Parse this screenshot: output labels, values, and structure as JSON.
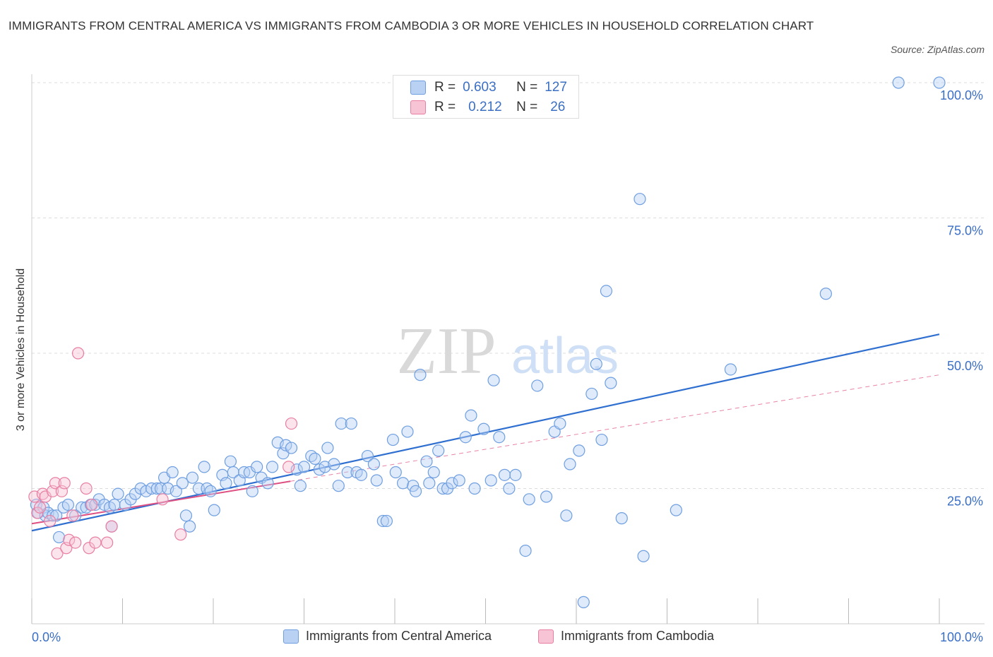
{
  "title": "IMMIGRANTS FROM CENTRAL AMERICA VS IMMIGRANTS FROM CAMBODIA 3 OR MORE VEHICLES IN HOUSEHOLD CORRELATION CHART",
  "source": "Source: ZipAtlas.com",
  "colors": {
    "blue": "#6f9fe0",
    "blue_fill": "#b9d1f3",
    "blue_line": "#2f6fd0",
    "pink": "#e87fa3",
    "pink_fill": "#f6c4d5",
    "pink_line": "#de4f82",
    "axis_text": "#3b6fc4"
  },
  "legend": {
    "r_label": "R =",
    "n_label": "N =",
    "rows": [
      {
        "r": "0.603",
        "n": "127"
      },
      {
        "r": "0.212",
        "n": "26"
      }
    ]
  },
  "watermark": {
    "zip": "ZIP",
    "atlas": "atlas"
  },
  "chart_data": {
    "type": "scatter",
    "xlabel": "",
    "ylabel": "3 or more Vehicles in Household",
    "xlim": [
      0,
      100
    ],
    "ylim": [
      0,
      100
    ],
    "x_tick_labels": [
      "0.0%",
      "100.0%"
    ],
    "y_tick_labels": [
      "25.0%",
      "50.0%",
      "75.0%",
      "100.0%"
    ],
    "y_ticks": [
      25,
      50,
      75,
      100
    ],
    "grid": true,
    "legend_position": "bottom",
    "series": [
      {
        "name": "Immigrants from Central America",
        "color": "#6f9fe0",
        "trend": {
          "x": [
            0,
            100
          ],
          "y": [
            17.2,
            53.5
          ],
          "style": "solid"
        },
        "points": [
          [
            0.5,
            22
          ],
          [
            0.7,
            20.5
          ],
          [
            1.3,
            21.5
          ],
          [
            1.5,
            20
          ],
          [
            1.8,
            20.5
          ],
          [
            2.3,
            20
          ],
          [
            2.7,
            20
          ],
          [
            3,
            16
          ],
          [
            3.5,
            21.5
          ],
          [
            4,
            22
          ],
          [
            4.8,
            20
          ],
          [
            5.5,
            21.5
          ],
          [
            6,
            21.5
          ],
          [
            6.5,
            22
          ],
          [
            7,
            22
          ],
          [
            7.4,
            23
          ],
          [
            8,
            22
          ],
          [
            8.6,
            21.5
          ],
          [
            8.8,
            18
          ],
          [
            9.1,
            22
          ],
          [
            9.5,
            24
          ],
          [
            10.3,
            22
          ],
          [
            10.9,
            23
          ],
          [
            11.4,
            24
          ],
          [
            12,
            25
          ],
          [
            12.6,
            24.5
          ],
          [
            13.2,
            25
          ],
          [
            13.8,
            25
          ],
          [
            14.2,
            25
          ],
          [
            14.6,
            27
          ],
          [
            15,
            25
          ],
          [
            15.5,
            28
          ],
          [
            15.9,
            24.5
          ],
          [
            16.6,
            26
          ],
          [
            17,
            20
          ],
          [
            17.4,
            18
          ],
          [
            17.7,
            27
          ],
          [
            18.4,
            25
          ],
          [
            19,
            29
          ],
          [
            19.3,
            25
          ],
          [
            19.7,
            24.5
          ],
          [
            20.1,
            21
          ],
          [
            21,
            27.5
          ],
          [
            21.4,
            26
          ],
          [
            21.9,
            30
          ],
          [
            22.2,
            28
          ],
          [
            22.9,
            26.5
          ],
          [
            23.4,
            28
          ],
          [
            24,
            28
          ],
          [
            24.3,
            24.5
          ],
          [
            24.8,
            29
          ],
          [
            25.3,
            27
          ],
          [
            26,
            26
          ],
          [
            26.5,
            29
          ],
          [
            27.1,
            33.5
          ],
          [
            27.7,
            31.5
          ],
          [
            28,
            33
          ],
          [
            28.6,
            32.5
          ],
          [
            29.2,
            28.5
          ],
          [
            29.6,
            25.5
          ],
          [
            30,
            29
          ],
          [
            30.8,
            31
          ],
          [
            31.2,
            30.5
          ],
          [
            31.7,
            28.5
          ],
          [
            32.3,
            29
          ],
          [
            32.6,
            32.5
          ],
          [
            33.3,
            29.5
          ],
          [
            33.8,
            25.5
          ],
          [
            34.1,
            37
          ],
          [
            34.8,
            28
          ],
          [
            35.2,
            37
          ],
          [
            35.8,
            28
          ],
          [
            36.3,
            27.5
          ],
          [
            37,
            31
          ],
          [
            37.7,
            29.5
          ],
          [
            38,
            26.5
          ],
          [
            38.7,
            19
          ],
          [
            39.1,
            19
          ],
          [
            39.8,
            34
          ],
          [
            40.1,
            28
          ],
          [
            40.9,
            26
          ],
          [
            41.4,
            35.5
          ],
          [
            42,
            25.5
          ],
          [
            42.3,
            24.5
          ],
          [
            42.8,
            46
          ],
          [
            43.5,
            30
          ],
          [
            43.8,
            26
          ],
          [
            44.3,
            28
          ],
          [
            44.8,
            32
          ],
          [
            45.3,
            25
          ],
          [
            45.8,
            25
          ],
          [
            46.3,
            26
          ],
          [
            47.1,
            26.5
          ],
          [
            47.8,
            34.5
          ],
          [
            48.4,
            38.5
          ],
          [
            48.8,
            25
          ],
          [
            49.8,
            36
          ],
          [
            50.6,
            26.5
          ],
          [
            50.9,
            45
          ],
          [
            51.5,
            34.5
          ],
          [
            52.1,
            27.5
          ],
          [
            52.6,
            25
          ],
          [
            53.3,
            27.5
          ],
          [
            54.4,
            13.5
          ],
          [
            54.8,
            23
          ],
          [
            55.7,
            44
          ],
          [
            56.7,
            23.5
          ],
          [
            57.6,
            35.5
          ],
          [
            58.2,
            37
          ],
          [
            58.9,
            20
          ],
          [
            59.3,
            29.5
          ],
          [
            60.3,
            32
          ],
          [
            60.8,
            4
          ],
          [
            61.7,
            42.5
          ],
          [
            62.2,
            48
          ],
          [
            62.8,
            34
          ],
          [
            63.3,
            61.5
          ],
          [
            63.8,
            44.5
          ],
          [
            65,
            19.5
          ],
          [
            67,
            78.5
          ],
          [
            67.4,
            12.5
          ],
          [
            71,
            21
          ],
          [
            77,
            47
          ],
          [
            87.5,
            61
          ],
          [
            95.5,
            100
          ],
          [
            100,
            100
          ]
        ]
      },
      {
        "name": "Immigrants from Cambodia",
        "color": "#e87fa3",
        "trend": {
          "x": [
            0,
            100
          ],
          "y": [
            18.5,
            46
          ],
          "style": "dashed",
          "solid_until_x": 28.5
        },
        "points": [
          [
            0.3,
            23.5
          ],
          [
            0.6,
            20.5
          ],
          [
            0.9,
            21.5
          ],
          [
            1.2,
            24
          ],
          [
            1.5,
            23.5
          ],
          [
            2,
            19
          ],
          [
            2.3,
            24.5
          ],
          [
            2.6,
            26
          ],
          [
            2.8,
            13
          ],
          [
            3.3,
            24.5
          ],
          [
            3.6,
            26
          ],
          [
            3.8,
            14
          ],
          [
            4.1,
            15.5
          ],
          [
            4.5,
            20
          ],
          [
            4.8,
            15
          ],
          [
            5.1,
            50
          ],
          [
            6,
            25
          ],
          [
            6.3,
            14
          ],
          [
            6.6,
            22
          ],
          [
            7,
            15
          ],
          [
            8.3,
            15
          ],
          [
            8.8,
            18
          ],
          [
            14.4,
            23
          ],
          [
            16.4,
            16.5
          ],
          [
            28.3,
            29
          ],
          [
            28.6,
            37
          ]
        ]
      }
    ]
  },
  "bottom_legend": [
    "Immigrants from Central America",
    "Immigrants from Cambodia"
  ]
}
